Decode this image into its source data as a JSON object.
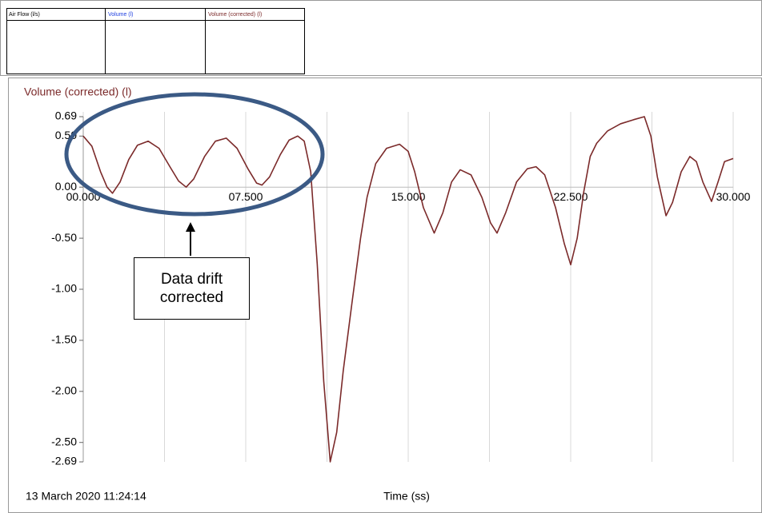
{
  "panels": [
    "Air Flow (l/s)",
    "Volume (l)",
    "Volume (corrected) (l)"
  ],
  "chart_data": {
    "type": "line",
    "title": "Volume (corrected) (l)",
    "xlabel": "Time (ss)",
    "timestamp": "13 March 2020  11:24:14",
    "annotation": "Data drift corrected",
    "x": [
      0,
      0.4,
      0.8,
      1.1,
      1.35,
      1.7,
      2.1,
      2.5,
      3.0,
      3.5,
      4.0,
      4.4,
      4.75,
      5.1,
      5.6,
      6.1,
      6.6,
      7.1,
      7.6,
      8.0,
      8.25,
      8.6,
      9.1,
      9.5,
      9.9,
      10.2,
      10.5,
      10.8,
      11.1,
      11.4,
      11.7,
      12.0,
      12.4,
      12.8,
      13.1,
      13.5,
      14.0,
      14.6,
      15.0,
      15.3,
      15.7,
      16.2,
      16.6,
      17.0,
      17.4,
      17.9,
      18.4,
      18.8,
      19.1,
      19.5,
      20.0,
      20.5,
      20.9,
      21.3,
      21.8,
      22.2,
      22.5,
      22.8,
      23.1,
      23.4,
      23.7,
      24.2,
      24.8,
      25.4,
      25.9,
      26.2,
      26.5,
      26.9,
      27.2,
      27.6,
      28.0,
      28.3,
      28.6,
      29.0,
      29.3,
      29.6,
      30.0
    ],
    "series": [
      {
        "name": "Volume (corrected) (l)",
        "color": "#7b2a2a",
        "values": [
          0.5,
          0.4,
          0.15,
          0.0,
          -0.06,
          0.05,
          0.27,
          0.41,
          0.45,
          0.38,
          0.2,
          0.06,
          0.0,
          0.08,
          0.3,
          0.45,
          0.48,
          0.38,
          0.18,
          0.04,
          0.02,
          0.1,
          0.32,
          0.46,
          0.5,
          0.45,
          0.15,
          -0.75,
          -1.9,
          -2.69,
          -2.4,
          -1.8,
          -1.14,
          -0.5,
          -0.1,
          0.23,
          0.38,
          0.42,
          0.35,
          0.15,
          -0.2,
          -0.45,
          -0.25,
          0.05,
          0.17,
          0.12,
          -0.1,
          -0.35,
          -0.45,
          -0.25,
          0.05,
          0.18,
          0.2,
          0.12,
          -0.2,
          -0.55,
          -0.76,
          -0.5,
          -0.05,
          0.3,
          0.43,
          0.55,
          0.62,
          0.66,
          0.69,
          0.5,
          0.1,
          -0.28,
          -0.15,
          0.15,
          0.3,
          0.25,
          0.05,
          -0.14,
          0.05,
          0.25,
          0.28
        ]
      }
    ],
    "xlim": [
      0,
      30
    ],
    "xticks": [
      {
        "value": 0,
        "label": "00.000"
      },
      {
        "value": 7.5,
        "label": "07.500"
      },
      {
        "value": 15,
        "label": "15.000"
      },
      {
        "value": 22.5,
        "label": "22.500"
      },
      {
        "value": 30,
        "label": "30.000"
      }
    ],
    "xgrid": [
      3.75,
      11.25,
      18.75,
      26.25
    ],
    "ylim": [
      -2.69,
      0.69
    ],
    "yticks": [
      0.69,
      {
        "value": 0.5,
        "label": "0.50"
      },
      {
        "value": 0,
        "label": "0.00"
      },
      {
        "value": -0.5,
        "label": "-0.50"
      },
      {
        "value": -1,
        "label": "-1.00"
      },
      {
        "value": -1.5,
        "label": "-1.50"
      },
      {
        "value": -2,
        "label": "-2.00"
      },
      {
        "value": -2.5,
        "label": "-2.50"
      },
      -2.69
    ],
    "grid": true
  }
}
